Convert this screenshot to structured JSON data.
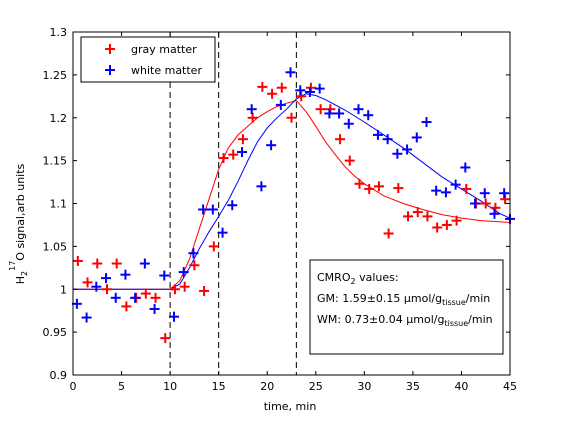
{
  "chart_data": {
    "type": "scatter",
    "xlabel": "time, min",
    "ylabel": {
      "pre": "H",
      "sub": "2",
      "sup": "17",
      "post": "O signal,arb units"
    },
    "xlim": [
      0,
      45
    ],
    "ylim": [
      0.9,
      1.3
    ],
    "xticks": [
      "0",
      "5",
      "10",
      "15",
      "20",
      "25",
      "30",
      "35",
      "40",
      "45"
    ],
    "yticks": [
      "0.9",
      "0.95",
      "1",
      "1.05",
      "1.1",
      "1.15",
      "1.2",
      "1.25",
      "1.3"
    ],
    "grid": false,
    "legend_position": "top-left",
    "vlines": [
      10,
      15,
      23
    ],
    "series": [
      {
        "name": "gray matter",
        "color": "#ff0000",
        "marker": "plus",
        "points": [
          [
            0.5,
            1.033
          ],
          [
            1.5,
            1.008
          ],
          [
            2.5,
            1.03
          ],
          [
            3.5,
            1.0
          ],
          [
            4.5,
            1.03
          ],
          [
            5.5,
            0.98
          ],
          [
            6.5,
            0.99
          ],
          [
            7.5,
            0.995
          ],
          [
            8.5,
            0.99
          ],
          [
            9.5,
            0.943
          ],
          [
            10.5,
            1.0
          ],
          [
            11.5,
            1.003
          ],
          [
            12.5,
            1.028
          ],
          [
            13.5,
            0.998
          ],
          [
            14.5,
            1.05
          ],
          [
            15.5,
            1.153
          ],
          [
            16.5,
            1.157
          ],
          [
            17.5,
            1.175
          ],
          [
            18.5,
            1.2
          ],
          [
            19.5,
            1.236
          ],
          [
            20.5,
            1.228
          ],
          [
            21.5,
            1.235
          ],
          [
            22.5,
            1.2
          ],
          [
            23.5,
            1.225
          ],
          [
            24.5,
            1.235
          ],
          [
            25.5,
            1.21
          ],
          [
            26.5,
            1.21
          ],
          [
            27.5,
            1.175
          ],
          [
            28.5,
            1.15
          ],
          [
            29.5,
            1.123
          ],
          [
            30.5,
            1.117
          ],
          [
            31.5,
            1.12
          ],
          [
            32.5,
            1.065
          ],
          [
            33.5,
            1.118
          ],
          [
            34.5,
            1.085
          ],
          [
            35.5,
            1.09
          ],
          [
            36.5,
            1.085
          ],
          [
            37.5,
            1.072
          ],
          [
            38.5,
            1.075
          ],
          [
            39.5,
            1.08
          ],
          [
            40.5,
            1.117
          ],
          [
            41.5,
            1.1
          ],
          [
            42.5,
            1.1
          ],
          [
            43.5,
            1.095
          ],
          [
            44.5,
            1.105
          ]
        ],
        "fit": [
          [
            0,
            1.0
          ],
          [
            10,
            1.0
          ],
          [
            11,
            1.01
          ],
          [
            12,
            1.035
          ],
          [
            13,
            1.07
          ],
          [
            14,
            1.105
          ],
          [
            15,
            1.14
          ],
          [
            16,
            1.165
          ],
          [
            17,
            1.18
          ],
          [
            18,
            1.19
          ],
          [
            19,
            1.2
          ],
          [
            20,
            1.207
          ],
          [
            21,
            1.213
          ],
          [
            22,
            1.217
          ],
          [
            23,
            1.22
          ],
          [
            24,
            1.207
          ],
          [
            25,
            1.19
          ],
          [
            26,
            1.172
          ],
          [
            27,
            1.157
          ],
          [
            28,
            1.143
          ],
          [
            29,
            1.132
          ],
          [
            30,
            1.123
          ],
          [
            32,
            1.109
          ],
          [
            34,
            1.1
          ],
          [
            36,
            1.093
          ],
          [
            38,
            1.087
          ],
          [
            40,
            1.083
          ],
          [
            42,
            1.08
          ],
          [
            45,
            1.078
          ]
        ]
      },
      {
        "name": "white matter",
        "color": "#0000ff",
        "marker": "plus",
        "points": [
          [
            0.4,
            0.983
          ],
          [
            1.4,
            0.967
          ],
          [
            2.4,
            1.003
          ],
          [
            3.4,
            1.013
          ],
          [
            4.4,
            0.99
          ],
          [
            5.4,
            1.017
          ],
          [
            6.4,
            0.99
          ],
          [
            7.4,
            1.03
          ],
          [
            8.4,
            0.977
          ],
          [
            9.4,
            1.016
          ],
          [
            10.4,
            0.968
          ],
          [
            11.4,
            1.02
          ],
          [
            12.4,
            1.042
          ],
          [
            13.4,
            1.093
          ],
          [
            14.4,
            1.093
          ],
          [
            15.4,
            1.066
          ],
          [
            16.4,
            1.098
          ],
          [
            17.4,
            1.16
          ],
          [
            18.4,
            1.21
          ],
          [
            19.4,
            1.12
          ],
          [
            20.4,
            1.168
          ],
          [
            21.4,
            1.215
          ],
          [
            22.4,
            1.253
          ],
          [
            23.4,
            1.232
          ],
          [
            24.4,
            1.23
          ],
          [
            25.4,
            1.234
          ],
          [
            26.4,
            1.205
          ],
          [
            27.4,
            1.205
          ],
          [
            28.4,
            1.193
          ],
          [
            29.4,
            1.21
          ],
          [
            30.4,
            1.203
          ],
          [
            31.4,
            1.18
          ],
          [
            32.4,
            1.175
          ],
          [
            33.4,
            1.158
          ],
          [
            34.4,
            1.163
          ],
          [
            35.4,
            1.177
          ],
          [
            36.4,
            1.195
          ],
          [
            37.4,
            1.115
          ],
          [
            38.4,
            1.113
          ],
          [
            39.4,
            1.122
          ],
          [
            40.4,
            1.142
          ],
          [
            41.4,
            1.1
          ],
          [
            42.4,
            1.112
          ],
          [
            43.4,
            1.088
          ],
          [
            44.4,
            1.112
          ],
          [
            45.0,
            1.082
          ]
        ],
        "fit": [
          [
            0,
            1.0
          ],
          [
            10,
            1.0
          ],
          [
            11,
            1.006
          ],
          [
            12,
            1.025
          ],
          [
            13,
            1.047
          ],
          [
            14,
            1.067
          ],
          [
            15,
            1.085
          ],
          [
            16,
            1.104
          ],
          [
            17,
            1.126
          ],
          [
            18,
            1.15
          ],
          [
            19,
            1.172
          ],
          [
            20,
            1.188
          ],
          [
            21,
            1.2
          ],
          [
            22,
            1.21
          ],
          [
            23,
            1.222
          ],
          [
            24,
            1.228
          ],
          [
            25,
            1.226
          ],
          [
            26,
            1.221
          ],
          [
            28,
            1.209
          ],
          [
            30,
            1.195
          ],
          [
            32,
            1.18
          ],
          [
            34,
            1.165
          ],
          [
            36,
            1.148
          ],
          [
            38,
            1.131
          ],
          [
            40,
            1.117
          ],
          [
            42,
            1.103
          ],
          [
            44,
            1.088
          ],
          [
            45,
            1.083
          ]
        ]
      }
    ],
    "annotation": {
      "title": {
        "pre": "CMRO",
        "sub": "2",
        "post": " values:"
      },
      "lines": [
        {
          "pre": "GM:  1.59±0.15 µmol/g",
          "sub": "tissue",
          "post": "/min"
        },
        {
          "pre": "WM: 0.73±0.04 µmol/g",
          "sub": "tissue",
          "post": "/min"
        }
      ]
    }
  }
}
